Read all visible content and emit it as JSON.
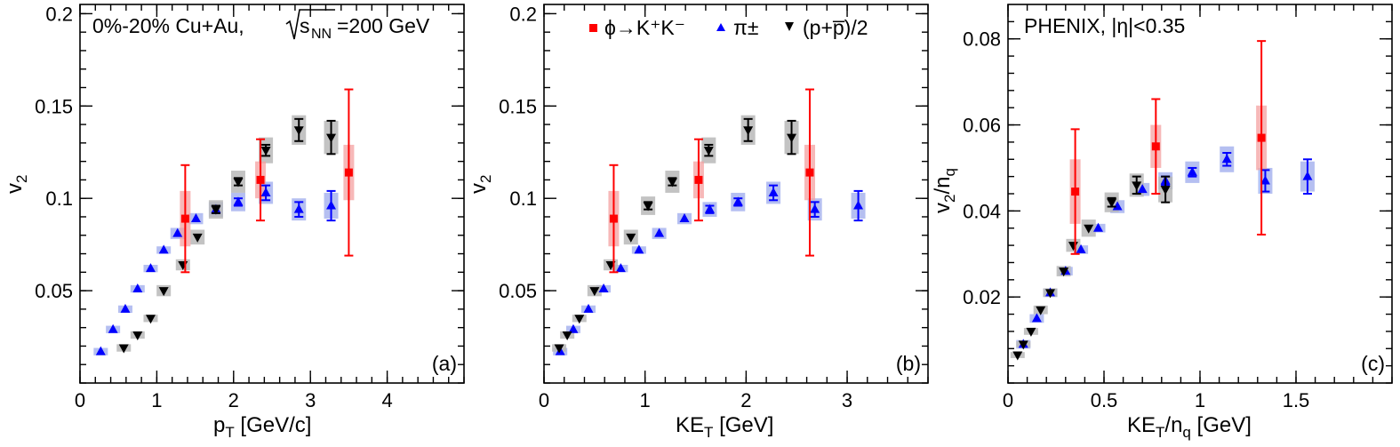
{
  "colors": {
    "phi": "#ff0000",
    "phi_box": "#f4a0a0",
    "pion": "#0000ff",
    "pion_box": "#a8b4ee",
    "proton": "#000000",
    "proton_box": "#b8b8b8"
  },
  "legend": {
    "phi": "ϕ→K⁺K⁻",
    "pion": "π±",
    "proton": "(p+p̅)/2"
  },
  "chart_data": [
    {
      "type": "scatter",
      "panel_label": "(a)",
      "annotation": "0%-20% Cu+Au, √sₙₙ=200 GeV",
      "xlabel": "p_T [GeV/c]",
      "ylabel": "v_2",
      "xlim": [
        0,
        5
      ],
      "ylim": [
        0.0,
        0.205
      ],
      "xticks": [
        0,
        1,
        2,
        3,
        4
      ],
      "yticks": [
        0.05,
        0.1,
        0.15,
        0.2
      ],
      "ytick_labels": [
        "0.05",
        "0.1",
        "0.15",
        "0.2"
      ],
      "series": [
        {
          "key": "pion",
          "marker": "triangle-up",
          "x": [
            0.27,
            0.43,
            0.59,
            0.75,
            0.92,
            1.09,
            1.27,
            1.51,
            1.77,
            2.06,
            2.42,
            2.85,
            3.27
          ],
          "y": [
            0.017,
            0.029,
            0.04,
            0.051,
            0.062,
            0.072,
            0.081,
            0.089,
            0.094,
            0.098,
            0.103,
            0.094,
            0.096
          ],
          "err": [
            0.001,
            0.001,
            0.001,
            0.001,
            0.001,
            0.001,
            0.001,
            0.001,
            0.002,
            0.002,
            0.004,
            0.004,
            0.008
          ],
          "sys": [
            0.002,
            0.002,
            0.002,
            0.002,
            0.002,
            0.002,
            0.003,
            0.003,
            0.004,
            0.005,
            0.006,
            0.006,
            0.007
          ]
        },
        {
          "key": "proton",
          "marker": "triangle-down",
          "x": [
            0.57,
            0.75,
            0.92,
            1.09,
            1.34,
            1.53,
            1.77,
            2.06,
            2.42,
            2.85,
            3.27
          ],
          "y": [
            0.019,
            0.026,
            0.035,
            0.05,
            0.064,
            0.079,
            0.094,
            0.109,
            0.126,
            0.137,
            0.133
          ],
          "err": [
            0.001,
            0.001,
            0.001,
            0.001,
            0.001,
            0.001,
            0.002,
            0.002,
            0.003,
            0.006,
            0.009
          ],
          "sys": [
            0.002,
            0.002,
            0.002,
            0.003,
            0.003,
            0.004,
            0.005,
            0.006,
            0.007,
            0.008,
            0.009
          ]
        },
        {
          "key": "phi",
          "marker": "square",
          "x": [
            1.37,
            2.35,
            3.5
          ],
          "y": [
            0.089,
            0.11,
            0.114
          ],
          "err": [
            0.029,
            0.022,
            0.045
          ],
          "sys": [
            0.015,
            0.01,
            0.015
          ]
        }
      ]
    },
    {
      "type": "scatter",
      "panel_label": "(b)",
      "xlabel": "KE_T [GeV]",
      "ylabel": "v_2",
      "xlim": [
        0,
        3.8
      ],
      "ylim": [
        0.0,
        0.205
      ],
      "xticks": [
        0,
        1,
        2,
        3
      ],
      "yticks": [
        0.05,
        0.1,
        0.15,
        0.2
      ],
      "ytick_labels": [
        "0.05",
        "0.1",
        "0.15",
        "0.2"
      ],
      "series": [
        {
          "key": "pion",
          "marker": "triangle-up",
          "x": [
            0.16,
            0.29,
            0.44,
            0.59,
            0.76,
            0.94,
            1.14,
            1.39,
            1.64,
            1.92,
            2.27,
            2.68,
            3.11
          ],
          "y": [
            0.017,
            0.029,
            0.04,
            0.051,
            0.062,
            0.072,
            0.081,
            0.089,
            0.094,
            0.098,
            0.103,
            0.094,
            0.096
          ],
          "err": [
            0.001,
            0.001,
            0.001,
            0.001,
            0.001,
            0.001,
            0.001,
            0.001,
            0.002,
            0.002,
            0.004,
            0.004,
            0.008
          ],
          "sys": [
            0.002,
            0.002,
            0.002,
            0.002,
            0.002,
            0.002,
            0.003,
            0.003,
            0.004,
            0.005,
            0.006,
            0.006,
            0.007
          ]
        },
        {
          "key": "proton",
          "marker": "triangle-down",
          "x": [
            0.15,
            0.23,
            0.35,
            0.5,
            0.66,
            0.86,
            1.03,
            1.27,
            1.63,
            2.02,
            2.45
          ],
          "y": [
            0.019,
            0.026,
            0.035,
            0.05,
            0.064,
            0.079,
            0.096,
            0.109,
            0.126,
            0.137,
            0.133
          ],
          "err": [
            0.001,
            0.001,
            0.001,
            0.001,
            0.001,
            0.001,
            0.002,
            0.002,
            0.003,
            0.006,
            0.009
          ],
          "sys": [
            0.002,
            0.002,
            0.002,
            0.003,
            0.003,
            0.004,
            0.005,
            0.006,
            0.007,
            0.008,
            0.009
          ]
        },
        {
          "key": "phi",
          "marker": "square",
          "x": [
            0.69,
            1.53,
            2.63
          ],
          "y": [
            0.089,
            0.11,
            0.114
          ],
          "err": [
            0.029,
            0.022,
            0.045
          ],
          "sys": [
            0.015,
            0.01,
            0.015
          ]
        }
      ]
    },
    {
      "type": "scatter",
      "panel_label": "(c)",
      "annotation": "PHENIX, |η|<0.35",
      "xlabel": "KE_T/n_q [GeV]",
      "ylabel": "v_2/n_q",
      "xlim": [
        0,
        2.0
      ],
      "ylim": [
        0.0,
        0.088
      ],
      "xticks": [
        0,
        0.5,
        1,
        1.5
      ],
      "xtick_labels": [
        "0",
        "0.5",
        "1",
        "1.5"
      ],
      "yticks": [
        0.02,
        0.04,
        0.06,
        0.08
      ],
      "ytick_labels": [
        "0.02",
        "0.04",
        "0.06",
        "0.08"
      ],
      "series": [
        {
          "key": "pion",
          "marker": "triangle-up",
          "x": [
            0.08,
            0.15,
            0.22,
            0.3,
            0.38,
            0.47,
            0.57,
            0.7,
            0.82,
            0.96,
            1.14,
            1.34,
            1.56
          ],
          "y": [
            0.009,
            0.015,
            0.021,
            0.026,
            0.031,
            0.036,
            0.041,
            0.045,
            0.047,
            0.049,
            0.052,
            0.047,
            0.048
          ],
          "err": [
            0.0005,
            0.0005,
            0.0005,
            0.0005,
            0.0005,
            0.0005,
            0.0005,
            0.0008,
            0.001,
            0.001,
            0.0015,
            0.0025,
            0.004
          ],
          "sys": [
            0.001,
            0.001,
            0.001,
            0.001,
            0.001,
            0.001,
            0.0015,
            0.0015,
            0.002,
            0.0025,
            0.003,
            0.003,
            0.0035
          ]
        },
        {
          "key": "proton",
          "marker": "triangle-down",
          "x": [
            0.05,
            0.08,
            0.12,
            0.17,
            0.22,
            0.29,
            0.34,
            0.42,
            0.54,
            0.67,
            0.82
          ],
          "y": [
            0.0065,
            0.009,
            0.012,
            0.017,
            0.021,
            0.026,
            0.032,
            0.036,
            0.042,
            0.046,
            0.045
          ],
          "err": [
            0.0004,
            0.0004,
            0.0004,
            0.0004,
            0.0004,
            0.0005,
            0.0006,
            0.0008,
            0.001,
            0.002,
            0.003
          ],
          "sys": [
            0.0007,
            0.0007,
            0.0008,
            0.001,
            0.001,
            0.0012,
            0.0015,
            0.002,
            0.0023,
            0.0027,
            0.003
          ]
        },
        {
          "key": "phi",
          "marker": "square",
          "x": [
            0.35,
            0.77,
            1.32
          ],
          "y": [
            0.0445,
            0.055,
            0.057
          ],
          "err": [
            0.0145,
            0.011,
            0.0225
          ],
          "sys": [
            0.0075,
            0.005,
            0.0075
          ]
        }
      ]
    }
  ]
}
